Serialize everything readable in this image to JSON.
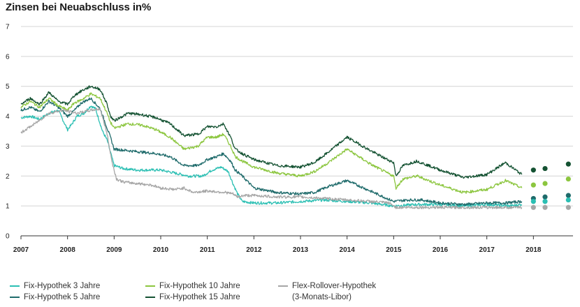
{
  "chart_data": {
    "type": "line",
    "title": "Zinsen bei Neuabschluss in%",
    "xlabel": "",
    "ylabel": "",
    "xlim": [
      2007.0,
      2018.85
    ],
    "ylim": [
      0,
      7
    ],
    "y_ticks": [
      "0",
      "1",
      "2",
      "3",
      "4",
      "5",
      "6",
      "7"
    ],
    "x_ticks": [
      "2007",
      "2008",
      "2009",
      "2010",
      "2011",
      "2012",
      "2013",
      "2014",
      "2015",
      "2016",
      "2017",
      "2018"
    ],
    "grid": "horizontal",
    "legend_position": "bottom",
    "colors": {
      "fix3": "#2bbfb3",
      "fix5": "#1f6b6b",
      "fix10": "#8cc63f",
      "fix15": "#145232",
      "flex": "#a6a6a6"
    },
    "series": [
      {
        "key": "fix3",
        "name": "Fix-Hypothek 3 Jahre",
        "color": "#2bbfb3",
        "x": [
          2007.0,
          2007.2,
          2007.4,
          2007.6,
          2007.8,
          2008.0,
          2008.1,
          2008.2,
          2008.35,
          2008.5,
          2008.6,
          2008.75,
          2008.85,
          2008.92,
          2009.0,
          2009.2,
          2009.5,
          2009.8,
          2010.0,
          2010.3,
          2010.6,
          2010.9,
          2011.1,
          2011.3,
          2011.45,
          2011.55,
          2011.65,
          2011.75,
          2012.0,
          2012.5,
          2013.0,
          2013.5,
          2014.0,
          2014.5,
          2015.0,
          2015.5,
          2016.0,
          2016.5,
          2017.0,
          2017.5,
          2017.75
        ],
        "y": [
          3.95,
          4.0,
          3.9,
          4.1,
          4.2,
          3.55,
          3.75,
          4.0,
          4.1,
          4.35,
          4.25,
          3.5,
          3.2,
          2.8,
          2.35,
          2.25,
          2.2,
          2.2,
          2.2,
          2.1,
          2.0,
          2.0,
          2.2,
          2.3,
          2.15,
          1.75,
          1.4,
          1.15,
          1.1,
          1.1,
          1.15,
          1.2,
          1.15,
          1.1,
          1.0,
          1.05,
          1.05,
          1.0,
          1.05,
          1.0,
          1.05
        ]
      },
      {
        "key": "fix5",
        "name": "Fix-Hypothek 5 Jahre",
        "color": "#1f6b6b",
        "x": [
          2007.0,
          2007.2,
          2007.4,
          2007.6,
          2007.8,
          2008.0,
          2008.15,
          2008.3,
          2008.5,
          2008.7,
          2008.85,
          2008.92,
          2009.0,
          2009.3,
          2009.6,
          2009.9,
          2010.2,
          2010.5,
          2010.8,
          2011.0,
          2011.2,
          2011.35,
          2011.5,
          2011.6,
          2011.75,
          2012.0,
          2012.5,
          2013.0,
          2013.3,
          2013.6,
          2014.0,
          2014.5,
          2015.0,
          2015.3,
          2015.6,
          2016.0,
          2016.5,
          2017.0,
          2017.4,
          2017.75
        ],
        "y": [
          4.2,
          4.3,
          4.15,
          4.5,
          4.3,
          4.0,
          4.2,
          4.45,
          4.6,
          4.25,
          3.6,
          3.3,
          2.9,
          2.85,
          2.8,
          2.75,
          2.65,
          2.35,
          2.35,
          2.55,
          2.65,
          2.75,
          2.5,
          2.2,
          2.0,
          1.6,
          1.45,
          1.4,
          1.45,
          1.65,
          1.85,
          1.5,
          1.15,
          1.2,
          1.2,
          1.1,
          1.05,
          1.1,
          1.1,
          1.15
        ]
      },
      {
        "key": "fix10",
        "name": "Fix-Hypothek 10 Jahre",
        "color": "#8cc63f",
        "x": [
          2007.0,
          2007.2,
          2007.4,
          2007.6,
          2007.8,
          2008.0,
          2008.15,
          2008.3,
          2008.5,
          2008.7,
          2008.85,
          2008.92,
          2009.0,
          2009.3,
          2009.6,
          2009.9,
          2010.2,
          2010.5,
          2010.8,
          2011.0,
          2011.2,
          2011.35,
          2011.5,
          2011.6,
          2011.75,
          2012.0,
          2012.5,
          2013.0,
          2013.3,
          2013.6,
          2014.0,
          2014.5,
          2014.8,
          2015.0,
          2015.05,
          2015.2,
          2015.5,
          2016.0,
          2016.5,
          2017.0,
          2017.4,
          2017.75
        ],
        "y": [
          4.3,
          4.5,
          4.3,
          4.6,
          4.35,
          4.2,
          4.45,
          4.55,
          4.75,
          4.6,
          4.1,
          3.8,
          3.6,
          3.75,
          3.7,
          3.55,
          3.3,
          2.9,
          3.0,
          3.3,
          3.3,
          3.4,
          3.0,
          2.65,
          2.5,
          2.3,
          2.1,
          2.0,
          2.15,
          2.45,
          2.9,
          2.4,
          2.15,
          2.0,
          1.6,
          1.9,
          2.0,
          1.7,
          1.45,
          1.55,
          1.85,
          1.6
        ]
      },
      {
        "key": "fix15",
        "name": "Fix-Hypothek 15 Jahre",
        "color": "#145232",
        "x": [
          2007.0,
          2007.2,
          2007.4,
          2007.6,
          2007.8,
          2008.0,
          2008.15,
          2008.3,
          2008.5,
          2008.7,
          2008.85,
          2008.92,
          2009.0,
          2009.3,
          2009.6,
          2009.9,
          2010.2,
          2010.5,
          2010.8,
          2011.0,
          2011.2,
          2011.35,
          2011.5,
          2011.6,
          2011.75,
          2012.0,
          2012.5,
          2013.0,
          2013.3,
          2013.6,
          2014.0,
          2014.5,
          2014.8,
          2015.0,
          2015.05,
          2015.2,
          2015.5,
          2016.0,
          2016.5,
          2017.0,
          2017.4,
          2017.75
        ],
        "y": [
          4.4,
          4.6,
          4.4,
          4.8,
          4.5,
          4.4,
          4.7,
          4.85,
          5.0,
          4.9,
          4.4,
          4.0,
          3.85,
          4.1,
          4.05,
          3.95,
          3.75,
          3.35,
          3.4,
          3.65,
          3.65,
          3.75,
          3.3,
          2.9,
          2.75,
          2.55,
          2.35,
          2.3,
          2.45,
          2.8,
          3.3,
          2.85,
          2.6,
          2.45,
          2.0,
          2.35,
          2.5,
          2.2,
          1.95,
          2.05,
          2.45,
          2.05
        ]
      },
      {
        "key": "flex",
        "name": "Flex-Rollover-Hypothek",
        "name_line2": "(3-Monats-Libor)",
        "color": "#a6a6a6",
        "x": [
          2007.0,
          2007.3,
          2007.6,
          2007.9,
          2008.2,
          2008.5,
          2008.7,
          2008.85,
          2008.95,
          2009.05,
          2009.2,
          2009.5,
          2009.8,
          2010.0,
          2010.3,
          2010.5,
          2010.7,
          2011.0,
          2011.4,
          2011.55,
          2011.65,
          2011.8,
          2012.0,
          2012.5,
          2013.0,
          2013.5,
          2014.0,
          2014.5,
          2014.9,
          2015.05,
          2015.5,
          2016.0,
          2016.5,
          2017.0,
          2017.5,
          2017.75
        ],
        "y": [
          3.45,
          3.75,
          4.1,
          4.2,
          4.1,
          4.2,
          4.25,
          3.4,
          2.5,
          1.9,
          1.8,
          1.75,
          1.7,
          1.6,
          1.55,
          1.6,
          1.45,
          1.5,
          1.45,
          1.4,
          1.3,
          1.35,
          1.35,
          1.3,
          1.3,
          1.25,
          1.2,
          1.15,
          1.1,
          0.95,
          0.95,
          0.95,
          0.95,
          0.95,
          0.95,
          0.95
        ]
      }
    ],
    "forecast": {
      "x": [
        2018.0,
        2018.25,
        2018.75
      ],
      "values": {
        "fix15": [
          2.2,
          2.25,
          2.4
        ],
        "fix10": [
          1.7,
          1.75,
          1.9
        ],
        "fix5": [
          1.25,
          1.3,
          1.35
        ],
        "fix3": [
          1.15,
          1.15,
          1.2
        ],
        "flex": [
          0.95,
          0.95,
          0.95
        ]
      }
    }
  }
}
